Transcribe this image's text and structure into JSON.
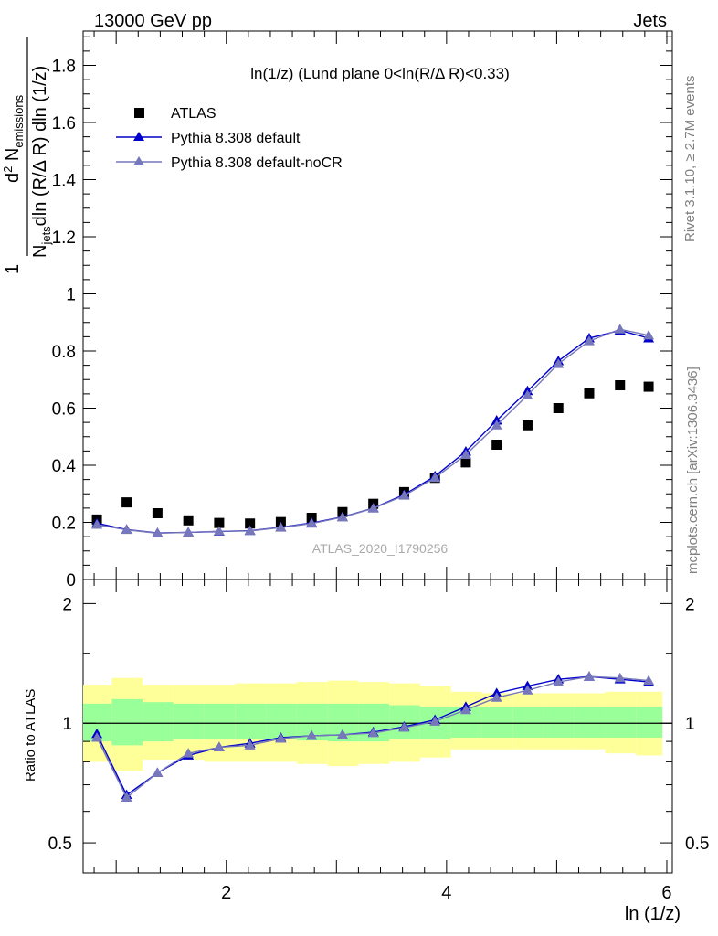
{
  "header": {
    "left": "13000 GeV pp",
    "right": "Jets"
  },
  "side_labels": {
    "rivet": "Rivet 3.1.10, ≥ 2.7M events",
    "mcplots": "mcplots.cern.ch [arXiv:1306.3436]"
  },
  "chart_data": {
    "type": "scatter",
    "title": "ln(1/z) (Lund plane 0<ln(R/Δ R)<0.33)",
    "watermark": "ATLAS_2020_I1790256",
    "xlabel": "ln (1/z)",
    "ylabel_top": "1/N_jets d²N_emissions / dln (R/Δ R) dln (1/z)",
    "ylabel_bottom": "Ratio to ATLAS",
    "xlim": [
      0.7,
      6.05
    ],
    "top_ylim": [
      0.0,
      1.92
    ],
    "ratio_ylim": [
      0.42,
      2.3
    ],
    "ratio_log": true,
    "x_ticks": [
      "2",
      "4",
      "6"
    ],
    "top_y_ticks": [
      "0",
      "0.2",
      "0.4",
      "0.6",
      "0.8",
      "1",
      "1.2",
      "1.4",
      "1.6",
      "1.8"
    ],
    "ratio_y_ticks": [
      "0.5",
      "1",
      "2"
    ],
    "legend_position": "top-left",
    "colors": {
      "data": "#000000",
      "default": "#0000cc",
      "nocr": "#7777bb",
      "band_inner": "#99ff99",
      "band_outer": "#ffff99"
    },
    "x": [
      0.825,
      1.095,
      1.375,
      1.655,
      1.935,
      2.215,
      2.495,
      2.775,
      3.055,
      3.335,
      3.615,
      3.895,
      4.175,
      4.455,
      4.735,
      5.015,
      5.295,
      5.575,
      5.835
    ],
    "bin_edges": [
      0.7,
      0.96,
      1.24,
      1.52,
      1.8,
      2.08,
      2.36,
      2.64,
      2.92,
      3.2,
      3.48,
      3.76,
      4.04,
      4.32,
      4.6,
      4.88,
      5.16,
      5.44,
      5.72,
      5.96
    ],
    "series": [
      {
        "name": "ATLAS",
        "values": [
          0.21,
          0.27,
          0.232,
          0.207,
          0.198,
          0.196,
          0.201,
          0.216,
          0.236,
          0.265,
          0.306,
          0.356,
          0.41,
          0.472,
          0.54,
          0.6,
          0.652,
          0.68,
          0.675
        ]
      },
      {
        "name": "Pythia 8.308 default",
        "values": [
          0.197,
          0.175,
          0.163,
          0.165,
          0.168,
          0.171,
          0.183,
          0.198,
          0.219,
          0.25,
          0.297,
          0.362,
          0.448,
          0.557,
          0.66,
          0.765,
          0.845,
          0.872,
          0.845
        ]
      },
      {
        "name": "Pythia 8.308 default-noCR",
        "values": [
          0.192,
          0.174,
          0.162,
          0.165,
          0.169,
          0.17,
          0.182,
          0.196,
          0.218,
          0.249,
          0.294,
          0.356,
          0.437,
          0.54,
          0.645,
          0.755,
          0.835,
          0.876,
          0.855
        ]
      }
    ],
    "ratio_series": [
      {
        "name": "Pythia 8.308 default",
        "values": [
          0.94,
          0.66,
          0.75,
          0.83,
          0.87,
          0.89,
          0.92,
          0.93,
          0.935,
          0.95,
          0.98,
          1.02,
          1.1,
          1.19,
          1.24,
          1.29,
          1.31,
          1.29,
          1.27
        ]
      },
      {
        "name": "Pythia 8.308 default-noCR",
        "values": [
          0.92,
          0.65,
          0.75,
          0.84,
          0.87,
          0.88,
          0.915,
          0.93,
          0.935,
          0.945,
          0.975,
          1.01,
          1.08,
          1.16,
          1.21,
          1.27,
          1.31,
          1.3,
          1.28
        ]
      }
    ],
    "band_inner": {
      "low": [
        0.9,
        0.88,
        0.9,
        0.91,
        0.91,
        0.91,
        0.91,
        0.905,
        0.9,
        0.9,
        0.91,
        0.91,
        0.92,
        0.92,
        0.92,
        0.92,
        0.92,
        0.92,
        0.92
      ],
      "high": [
        1.12,
        1.15,
        1.13,
        1.12,
        1.12,
        1.12,
        1.12,
        1.12,
        1.12,
        1.12,
        1.11,
        1.1,
        1.1,
        1.1,
        1.1,
        1.1,
        1.1,
        1.1,
        1.1
      ]
    },
    "band_outer": {
      "low": [
        0.8,
        0.76,
        0.81,
        0.81,
        0.8,
        0.8,
        0.8,
        0.79,
        0.78,
        0.79,
        0.8,
        0.82,
        0.86,
        0.86,
        0.86,
        0.86,
        0.86,
        0.84,
        0.83
      ],
      "high": [
        1.25,
        1.3,
        1.25,
        1.25,
        1.25,
        1.26,
        1.26,
        1.27,
        1.28,
        1.27,
        1.26,
        1.24,
        1.2,
        1.19,
        1.19,
        1.19,
        1.19,
        1.2,
        1.2
      ]
    }
  }
}
